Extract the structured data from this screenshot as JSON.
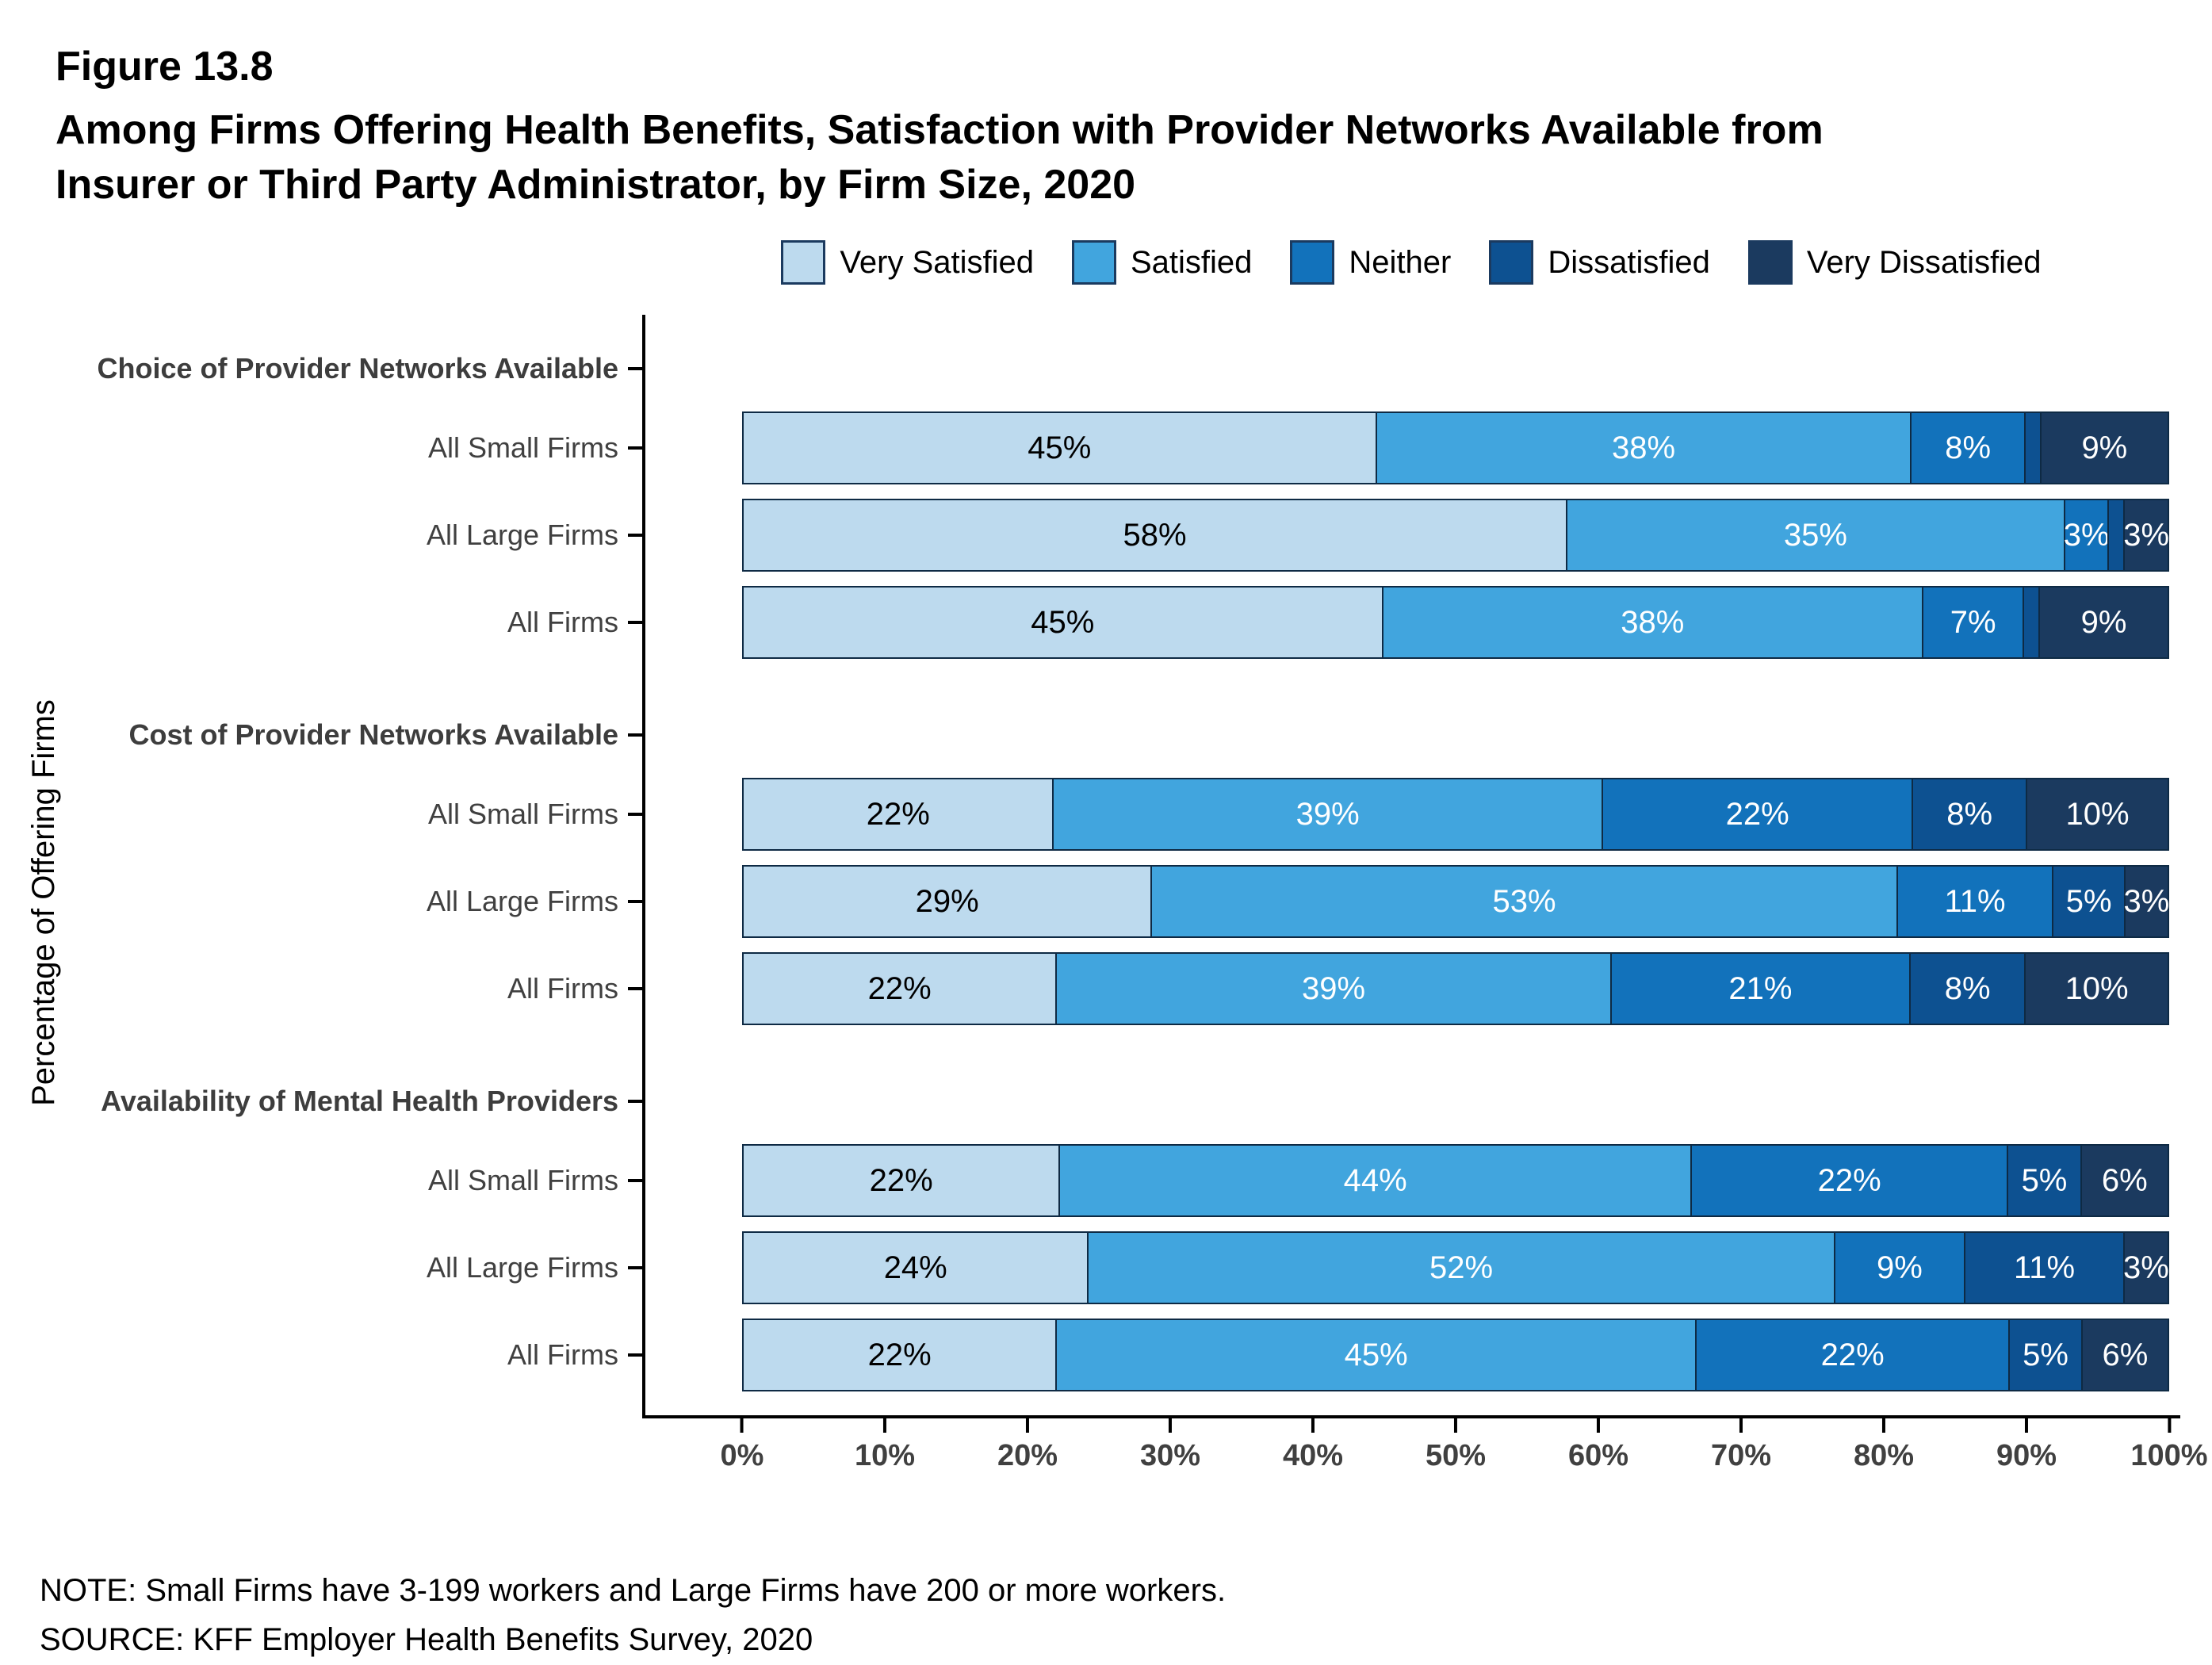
{
  "figure": {
    "label": "Figure 13.8",
    "title_lines": [
      "Among Firms Offering Health Benefits, Satisfaction with Provider Networks Available from",
      "Insurer or Third Party Administrator, by Firm Size, 2020"
    ],
    "note": "NOTE: Small Firms have 3-199 workers and Large Firms have 200 or more workers.",
    "source": "SOURCE: KFF Employer Health Benefits Survey, 2020"
  },
  "chart_data": {
    "type": "bar",
    "variant": "stacked-horizontal",
    "title": "Among Firms Offering Health Benefits, Satisfaction with Provider Networks Available from Insurer or Third Party Administrator, by Firm Size, 2020",
    "ylabel": "Percentage of Offering Firms",
    "xlabel": "",
    "xlim": [
      0,
      100
    ],
    "x_ticks": [
      "0%",
      "10%",
      "20%",
      "30%",
      "40%",
      "50%",
      "60%",
      "70%",
      "80%",
      "90%",
      "100%"
    ],
    "legend_position": "top",
    "grid": false,
    "series": [
      {
        "name": "Very Satisfied",
        "color": "#BDDAEE",
        "label_color": "#000000"
      },
      {
        "name": "Satisfied",
        "color": "#41A5DE",
        "label_color": "#FFFFFF"
      },
      {
        "name": "Neither",
        "color": "#1272BB",
        "label_color": "#FFFFFF"
      },
      {
        "name": "Dissatisfied",
        "color": "#0D5191",
        "label_color": "#FFFFFF"
      },
      {
        "name": "Very Dissatisfied",
        "color": "#1B3A5F",
        "label_color": "#FFFFFF"
      }
    ],
    "groups": [
      {
        "header": "Choice of Provider Networks Available",
        "rows": [
          {
            "category": "All Small Firms",
            "values": [
              45,
              38,
              8,
              1,
              9
            ],
            "labels": [
              "45%",
              "38%",
              "8%",
              "",
              "9%"
            ]
          },
          {
            "category": "All Large Firms",
            "values": [
              58,
              35,
              3,
              1,
              3
            ],
            "labels": [
              "58%",
              "35%",
              "3%",
              "",
              "3%"
            ]
          },
          {
            "category": "All Firms",
            "values": [
              45,
              38,
              7,
              1,
              9
            ],
            "labels": [
              "45%",
              "38%",
              "7%",
              "",
              "9%"
            ]
          }
        ]
      },
      {
        "header": "Cost of Provider Networks Available",
        "rows": [
          {
            "category": "All Small Firms",
            "values": [
              22,
              39,
              22,
              8,
              10
            ],
            "labels": [
              "22%",
              "39%",
              "22%",
              "8%",
              "10%"
            ]
          },
          {
            "category": "All Large Firms",
            "values": [
              29,
              53,
              11,
              5,
              3
            ],
            "labels": [
              "29%",
              "53%",
              "11%",
              "5%",
              "3%"
            ]
          },
          {
            "category": "All Firms",
            "values": [
              22,
              39,
              21,
              8,
              10
            ],
            "labels": [
              "22%",
              "39%",
              "21%",
              "8%",
              "10%"
            ]
          }
        ]
      },
      {
        "header": "Availability of Mental Health Providers",
        "rows": [
          {
            "category": "All Small Firms",
            "values": [
              22,
              44,
              22,
              5,
              6
            ],
            "labels": [
              "22%",
              "44%",
              "22%",
              "5%",
              "6%"
            ]
          },
          {
            "category": "All Large Firms",
            "values": [
              24,
              52,
              9,
              11,
              3
            ],
            "labels": [
              "24%",
              "52%",
              "9%",
              "11%",
              "3%"
            ]
          },
          {
            "category": "All Firms",
            "values": [
              22,
              45,
              22,
              5,
              6
            ],
            "labels": [
              "22%",
              "45%",
              "22%",
              "5%",
              "6%"
            ]
          }
        ]
      }
    ]
  }
}
